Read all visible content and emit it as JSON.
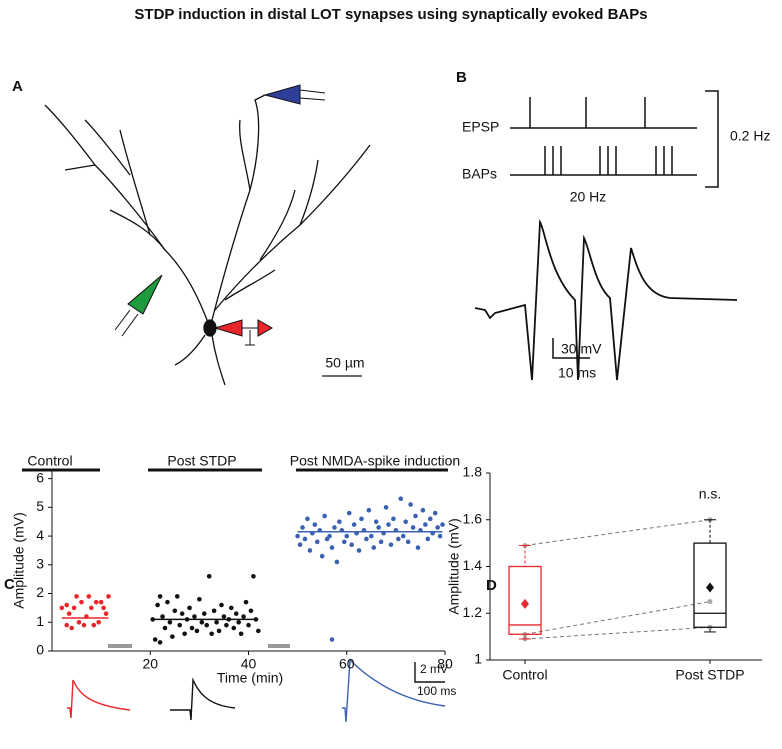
{
  "title": "STDP induction in distal LOT synapses using synaptically evoked BAPs",
  "panels": [
    "A",
    "B",
    "C",
    "D"
  ],
  "panel_a": {
    "scale_bar": "50 µm"
  },
  "panel_b": {
    "epsp": "EPSP",
    "baps": "BAPs",
    "rate": "0.2 Hz",
    "burst": "20 Hz",
    "scale_v": "30 mV",
    "scale_t": "10 ms"
  },
  "traces": {
    "scale_v": "2 mV",
    "scale_t": "100 ms"
  },
  "chart_data": [
    {
      "type": "scatter",
      "xlabel": "Time (min)",
      "ylabel": "Amplitude (mV)",
      "phases": [
        "Control",
        "Post STDP",
        "Post NMDA-spike induction"
      ],
      "xlim": [
        0,
        80
      ],
      "ylim": [
        0,
        6.3
      ],
      "xticks": [
        20,
        40,
        60,
        80
      ],
      "yticks": [
        0,
        1,
        2,
        3,
        4,
        5,
        6
      ],
      "series": [
        {
          "color": "#e8262b",
          "mean": 1.15,
          "x": [
            2,
            3,
            3.5,
            4,
            4.5,
            5,
            5.5,
            6,
            6.5,
            7,
            7.5,
            8,
            8.5,
            9,
            9.5,
            10,
            10.5,
            11,
            11.5,
            3
          ],
          "values": [
            1.5,
            0.9,
            1.3,
            0.8,
            1.5,
            1.9,
            1.0,
            1.7,
            0.9,
            1.2,
            1.9,
            1.5,
            0.9,
            1.7,
            1.0,
            1.7,
            1.5,
            1.3,
            1.9,
            1.6
          ]
        },
        {
          "color": "#111111",
          "mean": 1.1,
          "x": [
            20.5,
            21,
            21.5,
            22,
            22.5,
            23,
            23.5,
            24,
            24.5,
            25,
            25.5,
            26,
            26.5,
            27,
            27.5,
            28,
            28.5,
            29,
            29.5,
            30,
            30.5,
            31,
            31.5,
            32,
            32.5,
            33,
            33.5,
            34,
            34.5,
            35,
            35.5,
            36,
            36.5,
            37,
            37.5,
            38,
            38.5,
            39,
            39.5,
            40,
            40.5,
            41,
            41.5,
            42,
            22
          ],
          "values": [
            1.1,
            0.4,
            1.6,
            0.3,
            1.2,
            0.8,
            1.7,
            1.0,
            0.5,
            1.4,
            1.9,
            0.9,
            1.3,
            0.6,
            1.1,
            1.5,
            0.8,
            1.2,
            0.7,
            1.8,
            1.0,
            1.3,
            0.9,
            2.6,
            0.6,
            1.4,
            1.0,
            0.7,
            1.6,
            1.2,
            0.9,
            1.1,
            1.5,
            0.8,
            1.3,
            1.0,
            0.6,
            1.2,
            1.7,
            0.9,
            1.4,
            2.6,
            1.1,
            0.7,
            1.9
          ]
        },
        {
          "color": "#3b62b0",
          "mean": 4.15,
          "x": [
            50,
            50.5,
            51,
            51.5,
            52,
            52.5,
            53,
            53.5,
            54,
            54.5,
            55,
            55.5,
            56,
            56.5,
            57,
            57.5,
            58,
            58.5,
            59,
            59.5,
            60,
            60.5,
            61,
            61.5,
            62,
            62.5,
            63,
            63.5,
            64,
            64.5,
            65,
            65.5,
            66,
            66.5,
            67,
            67.5,
            68,
            68.5,
            69,
            69.5,
            70,
            70.5,
            71,
            71.5,
            72,
            72.5,
            73,
            73.5,
            74,
            74.5,
            75,
            75.5,
            76,
            76.5,
            77,
            77.5,
            78,
            78.5,
            79,
            79.5,
            57
          ],
          "values": [
            4.0,
            3.7,
            4.3,
            3.9,
            4.6,
            3.5,
            4.1,
            4.4,
            3.8,
            4.2,
            3.3,
            4.7,
            3.9,
            4.0,
            3.6,
            4.3,
            3.1,
            4.5,
            4.2,
            3.8,
            4.0,
            4.8,
            3.7,
            4.4,
            4.1,
            3.5,
            4.6,
            4.2,
            3.9,
            4.9,
            4.0,
            3.6,
            4.5,
            4.3,
            3.8,
            4.1,
            5.0,
            4.4,
            3.7,
            4.6,
            4.2,
            3.9,
            5.3,
            4.0,
            4.5,
            3.8,
            5.1,
            4.3,
            4.7,
            3.6,
            4.2,
            4.9,
            4.4,
            3.9,
            4.6,
            4.1,
            4.8,
            4.3,
            4.0,
            4.4,
            0.4
          ]
        }
      ]
    },
    {
      "type": "box",
      "ylabel": "Amplitude (mV)",
      "annotation": "n.s.",
      "categories": [
        "Control",
        "Post STDP"
      ],
      "ylim": [
        1,
        1.8
      ],
      "yticks": [
        1,
        1.2,
        1.4,
        1.6,
        1.8
      ],
      "boxes": [
        {
          "color": "#e8262b",
          "whisker_low": 1.09,
          "q1": 1.11,
          "median": 1.15,
          "q3": 1.4,
          "whisker_high": 1.49,
          "mean": 1.24
        },
        {
          "color": "#111111",
          "whisker_low": 1.12,
          "q1": 1.14,
          "median": 1.2,
          "q3": 1.5,
          "whisker_high": 1.6,
          "mean": 1.31
        }
      ],
      "pairs": [
        [
          1.49,
          1.6
        ],
        [
          1.11,
          1.25
        ],
        [
          1.09,
          1.14
        ]
      ]
    }
  ]
}
